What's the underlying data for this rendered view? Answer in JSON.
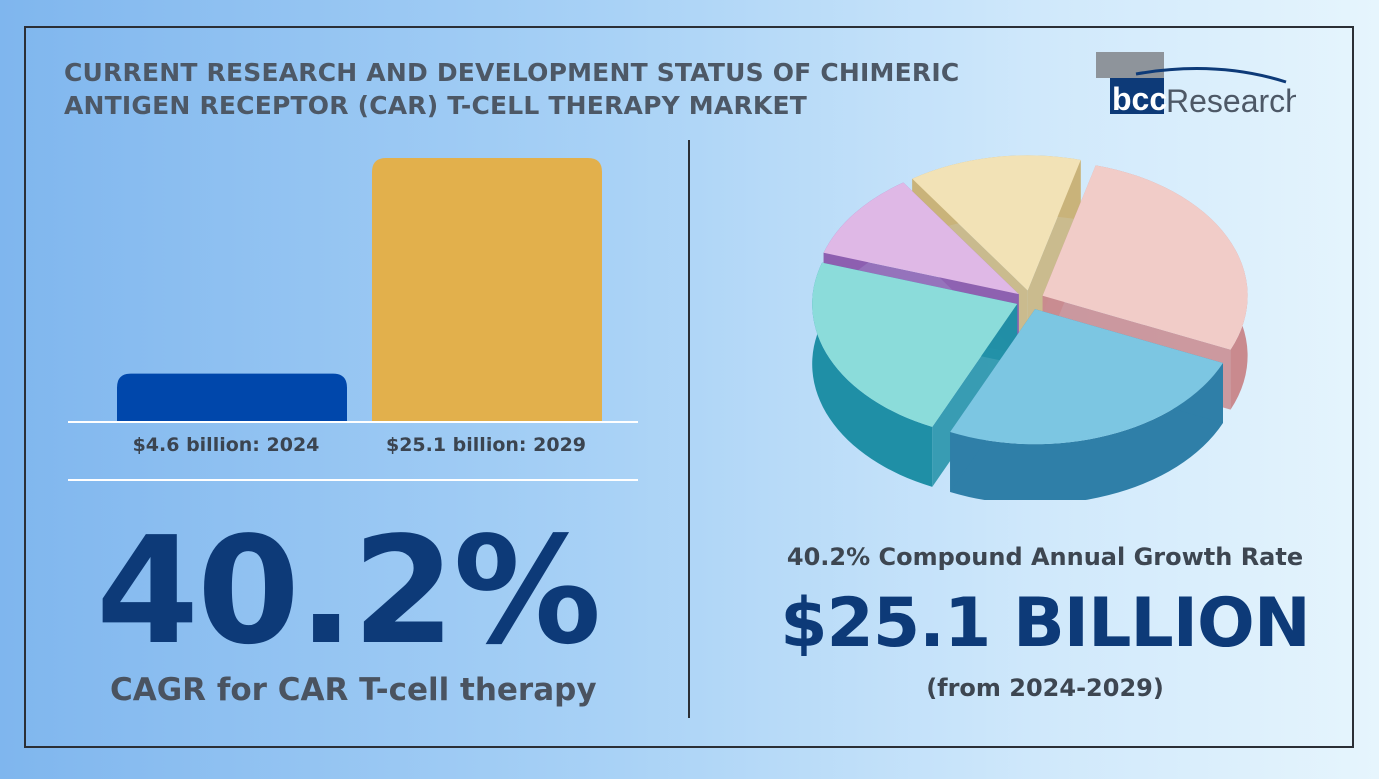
{
  "header": {
    "title": "CURRENT RESEARCH AND DEVELOPMENT STATUS OF CHIMERIC ANTIGEN RECEPTOR (CAR) T-CELL THERAPY MARKET"
  },
  "logo": {
    "part1": "bcc",
    "part2": "Research"
  },
  "chart_data": [
    {
      "type": "bar",
      "categories": [
        "$4.6 billion: 2024",
        "$25.1 billion: 2029"
      ],
      "values": [
        4.6,
        25.1
      ],
      "colors": [
        "#0047ab",
        "#e2b04c"
      ],
      "title": "",
      "xlabel": "",
      "ylabel": "",
      "ylim": [
        0,
        25.1
      ],
      "grid": false
    },
    {
      "type": "pie",
      "values": [
        26,
        24,
        22,
        10,
        13
      ],
      "colors": [
        "#f1ccc8",
        "#7cc6e2",
        "#8bdcda",
        "#dfb8e6",
        "#f2e2b6"
      ],
      "side_colors": [
        "#c98a8e",
        "#2f7fa8",
        "#1f8fa6",
        "#8d5fb0",
        "#c9b37a"
      ],
      "exploded": true,
      "title": "",
      "legend": "none"
    }
  ],
  "stats": {
    "cagr_value": "40.2%",
    "cagr_caption": "CAGR for CAR T-cell therapy",
    "growth_rate_line": "40.2% Compound Annual Growth Rate",
    "market_value": "$25.1 BILLION",
    "period": "(from 2024-2029)"
  },
  "colors": {
    "accent_dark": "#0d3a78",
    "text_gray": "#4a5360"
  }
}
